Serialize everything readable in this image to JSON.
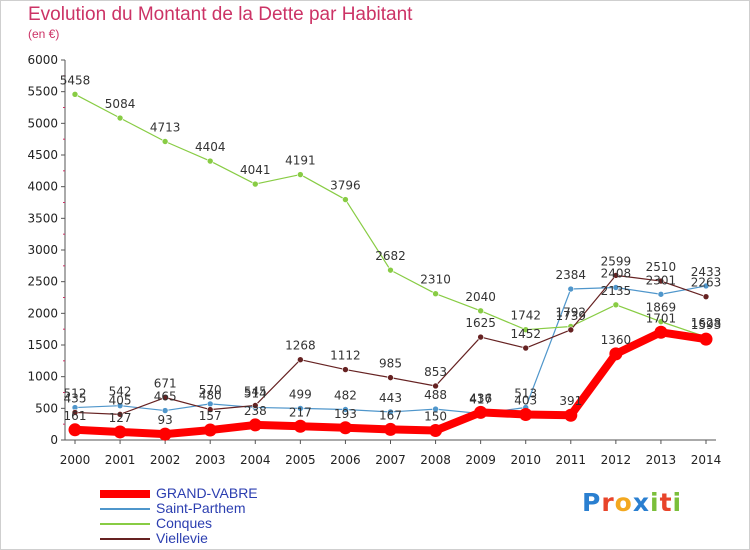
{
  "title": "Evolution du Montant de la Dette par Habitant",
  "subtitle": "(en €)",
  "logo_text": "Proxiti",
  "chart_data": {
    "type": "line",
    "x": [
      "2000",
      "2001",
      "2002",
      "2003",
      "2004",
      "2005",
      "2006",
      "2007",
      "2008",
      "2009",
      "2010",
      "2011",
      "2012",
      "2013",
      "2014"
    ],
    "ylim": [
      0,
      6000
    ],
    "yticks": [
      0,
      500,
      1000,
      1500,
      2000,
      2500,
      3000,
      3500,
      4000,
      4500,
      5000,
      5500,
      6000
    ],
    "grid": false,
    "legend_position": "bottom-left",
    "series": [
      {
        "name": "GRAND-VABRE",
        "color": "#ff0000",
        "values": [
          161,
          127,
          93,
          157,
          238,
          217,
          193,
          167,
          150,
          436,
          403,
          391,
          1360,
          1701,
          1593
        ]
      },
      {
        "name": "Saint-Parthem",
        "color": "#4f96cb",
        "values": [
          512,
          542,
          465,
          570,
          514,
          499,
          482,
          443,
          488,
          417,
          513,
          2384,
          2408,
          2301,
          2433
        ]
      },
      {
        "name": "Conques",
        "color": "#88cc44",
        "values": [
          5458,
          5084,
          4713,
          4404,
          4041,
          4191,
          3796,
          2682,
          2310,
          2040,
          1742,
          1792,
          2135,
          1869,
          1628
        ]
      },
      {
        "name": "Viellevie",
        "color": "#662222",
        "values": [
          435,
          405,
          671,
          480,
          545,
          1268,
          1112,
          985,
          853,
          1625,
          1452,
          1739,
          2599,
          2510,
          2263
        ]
      }
    ]
  }
}
